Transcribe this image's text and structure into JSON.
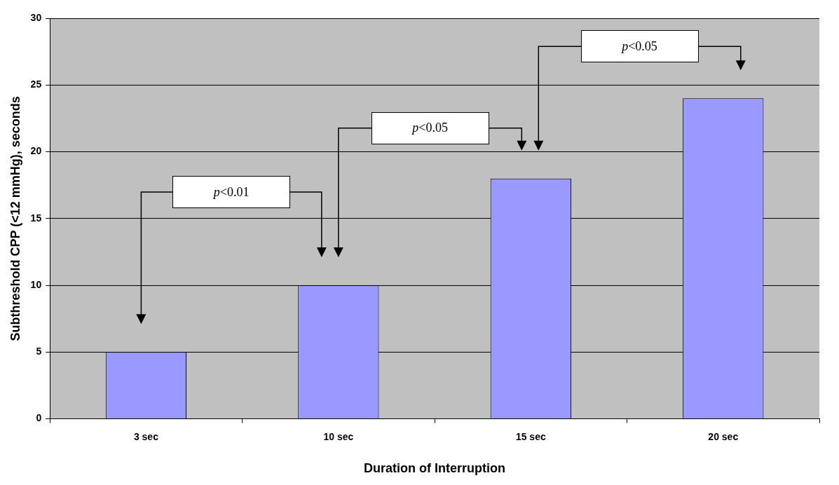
{
  "chart_data": {
    "type": "bar",
    "xlabel": "Duration of Interruption",
    "ylabel": "Subthreshold CPP (<12 mmHg), seconds",
    "categories": [
      "3 sec",
      "10 sec",
      "15 sec",
      "20 sec"
    ],
    "values": [
      5,
      10,
      18,
      24
    ],
    "color": "#9999ff",
    "ylim": [
      0,
      30
    ],
    "yticks": [
      0,
      5,
      10,
      15,
      20,
      25,
      30
    ],
    "grid": "y",
    "annotations": [
      "p<0.01",
      "p<0.05",
      "p<0.05"
    ]
  }
}
